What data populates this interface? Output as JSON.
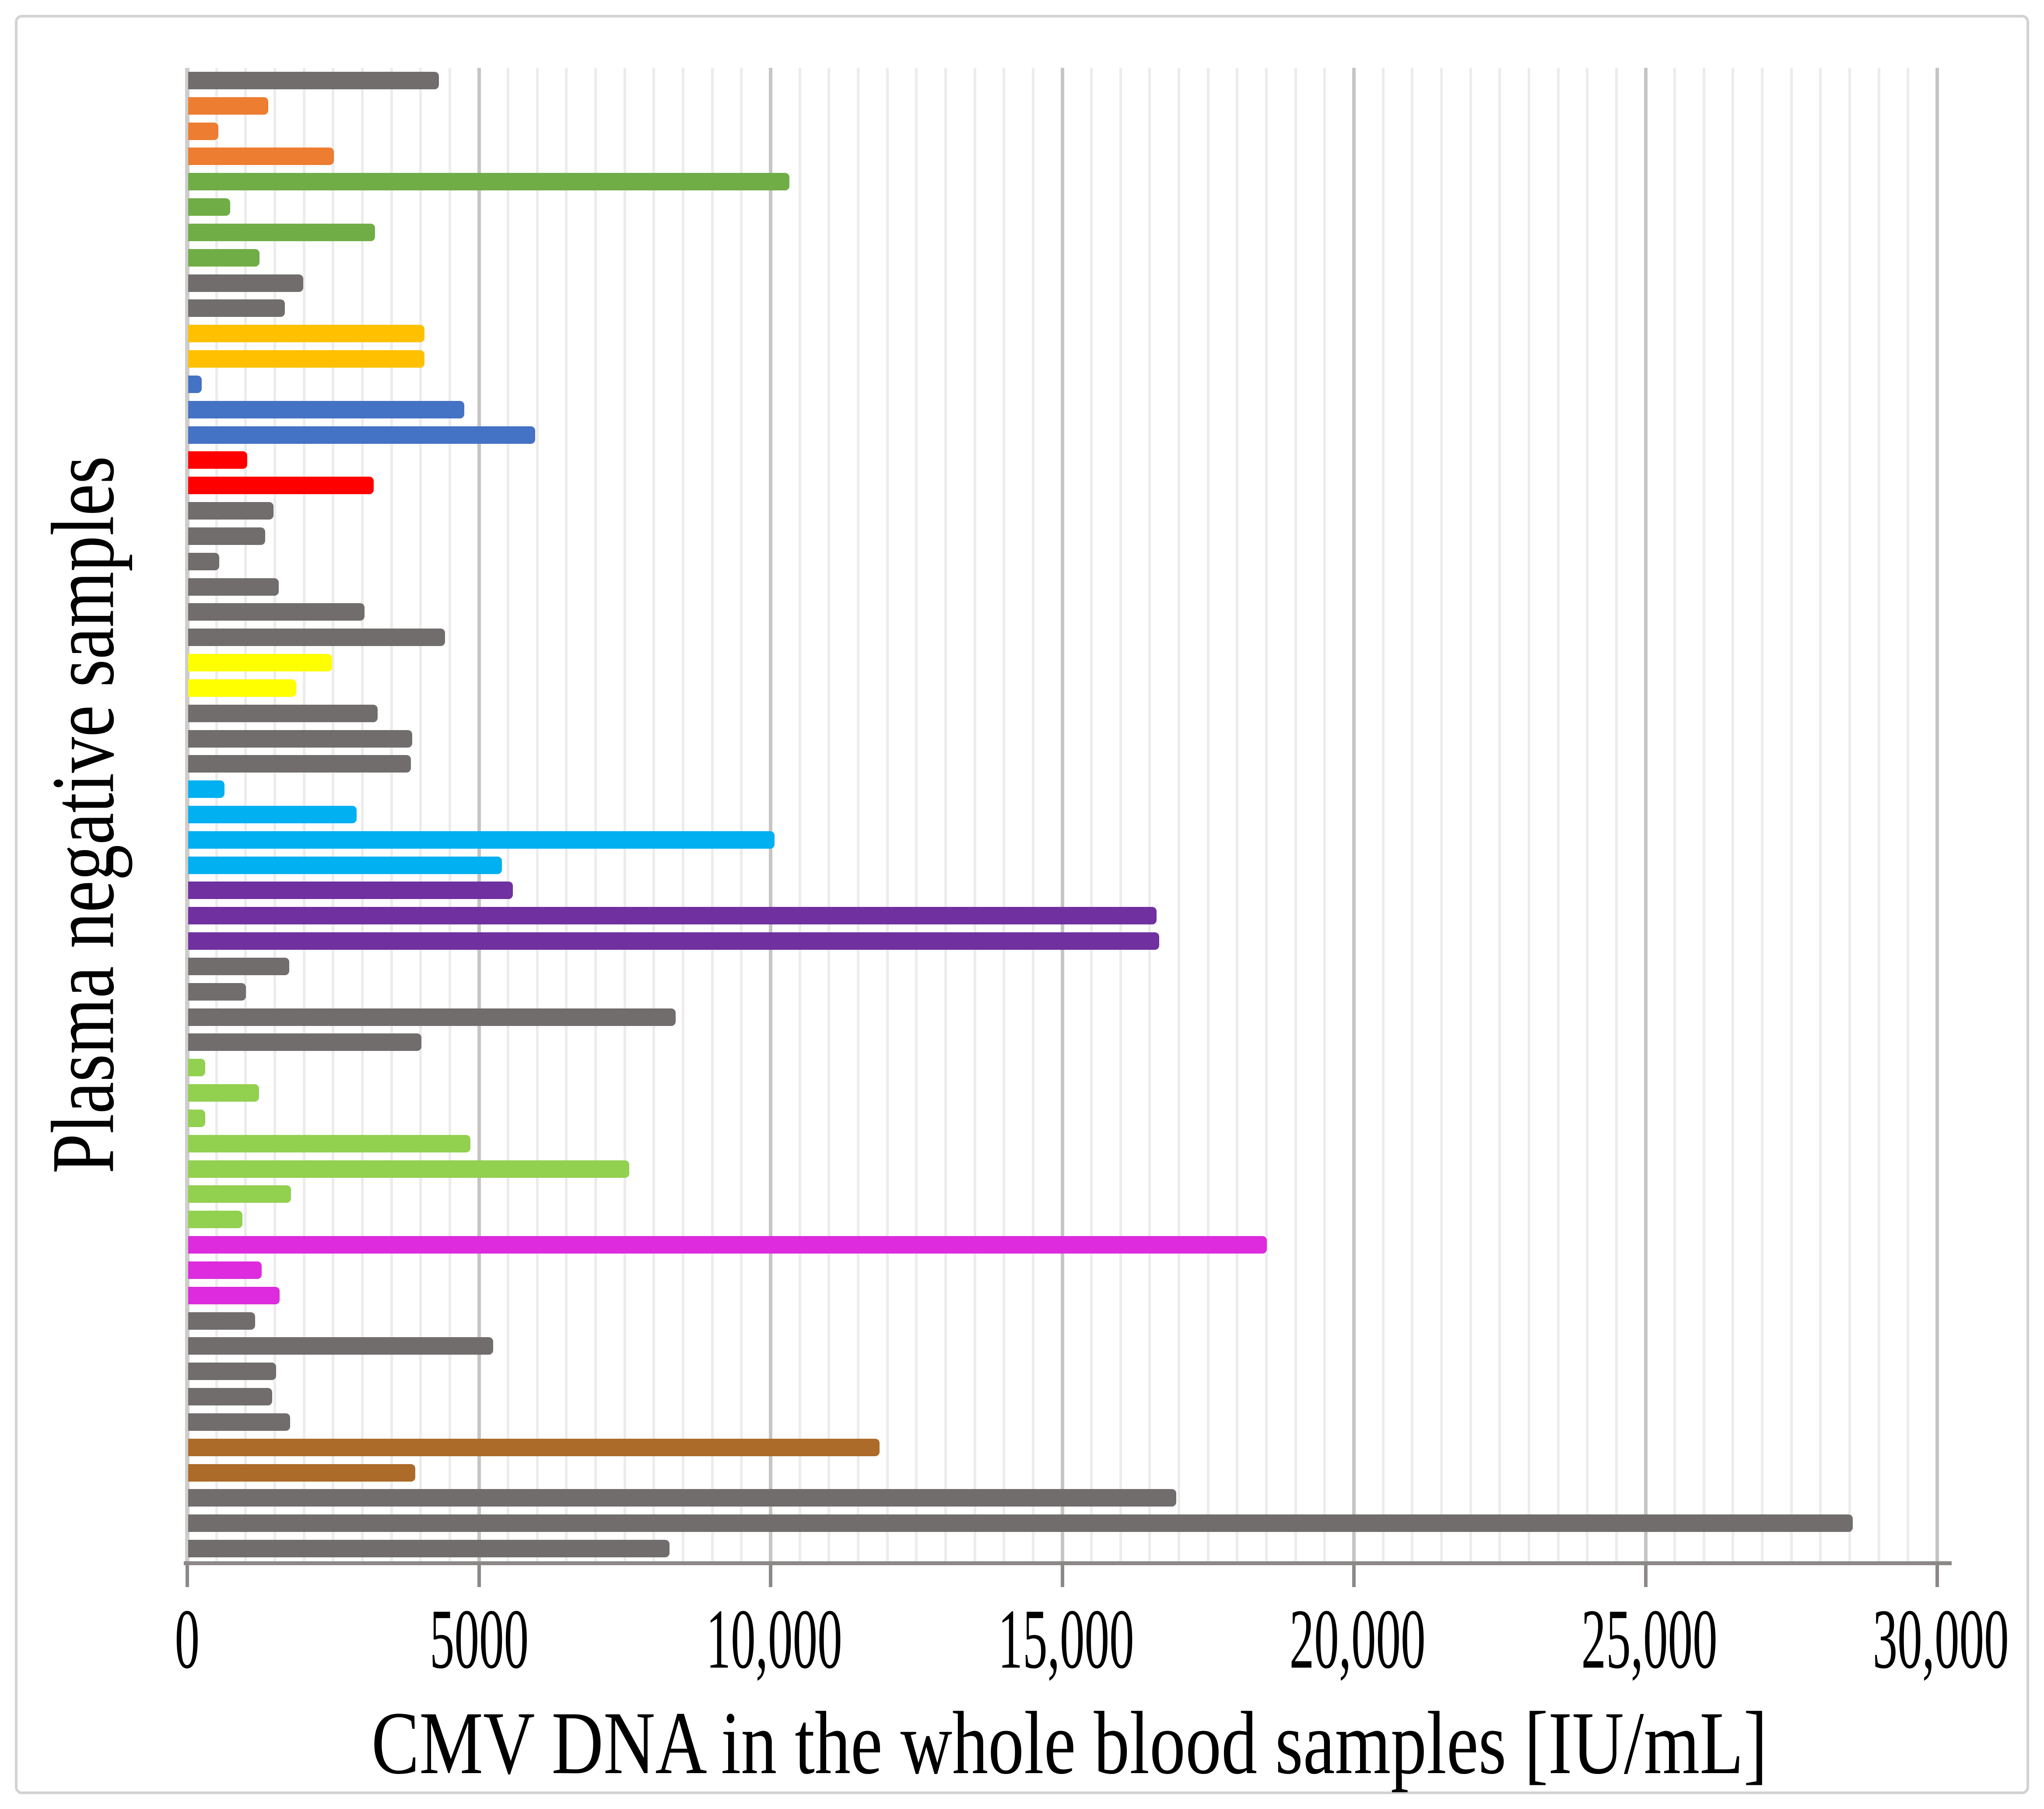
{
  "figure": {
    "background": "#FFFFFF",
    "frame_border_color": "#D4D1D1"
  },
  "style": {
    "minor_grid_color": "#EDEBEB",
    "major_grid_color": "#C7C4C4",
    "y_axis_line_color": "#CFCCCC",
    "x_axis_line_color": "#8C8888",
    "tick_color": "#8C8888",
    "label_color": "#000000"
  },
  "chart_data": {
    "type": "bar",
    "orientation": "horizontal",
    "title": "",
    "xlabel": "CMV DNA in the whole blood samples [IU/mL]",
    "ylabel": "Plasma negative samples",
    "xlim": [
      0,
      30000
    ],
    "x_major_tick_values": [
      0,
      5000,
      10000,
      15000,
      20000,
      25000,
      30000
    ],
    "x_tick_labels": [
      "0",
      "5000",
      "10,000",
      "15,000",
      "20,000",
      "25,000",
      "30,000"
    ],
    "x_minor_step": 500,
    "grid": {
      "vertical_minor": true,
      "vertical_major": true,
      "horizontal": false
    },
    "legend_position": "none",
    "colors": {
      "gray": "#716D6C",
      "orange": "#ED7D31",
      "green": "#70AD47",
      "gold": "#FFC000",
      "blue": "#4472C4",
      "red": "#FF0000",
      "yellow": "#FFFF00",
      "cyan": "#00B0F0",
      "purple": "#7030A0",
      "lightgreen": "#92D050",
      "magenta": "#DD2BDD",
      "brown": "#AC6B29"
    },
    "bars": [
      {
        "value": 4300,
        "color": "gray"
      },
      {
        "value": 1370,
        "color": "orange"
      },
      {
        "value": 520,
        "color": "orange"
      },
      {
        "value": 2500,
        "color": "orange"
      },
      {
        "value": 10310,
        "color": "green"
      },
      {
        "value": 720,
        "color": "green"
      },
      {
        "value": 3200,
        "color": "green"
      },
      {
        "value": 1220,
        "color": "green"
      },
      {
        "value": 1970,
        "color": "gray"
      },
      {
        "value": 1660,
        "color": "gray"
      },
      {
        "value": 4050,
        "color": "gold"
      },
      {
        "value": 4050,
        "color": "gold"
      },
      {
        "value": 230,
        "color": "blue"
      },
      {
        "value": 4730,
        "color": "blue"
      },
      {
        "value": 5950,
        "color": "blue"
      },
      {
        "value": 1010,
        "color": "red"
      },
      {
        "value": 3180,
        "color": "red"
      },
      {
        "value": 1460,
        "color": "gray"
      },
      {
        "value": 1320,
        "color": "gray"
      },
      {
        "value": 530,
        "color": "gray"
      },
      {
        "value": 1550,
        "color": "gray"
      },
      {
        "value": 3020,
        "color": "gray"
      },
      {
        "value": 4400,
        "color": "gray"
      },
      {
        "value": 2470,
        "color": "yellow"
      },
      {
        "value": 1850,
        "color": "yellow"
      },
      {
        "value": 3250,
        "color": "gray"
      },
      {
        "value": 3840,
        "color": "gray"
      },
      {
        "value": 3820,
        "color": "gray"
      },
      {
        "value": 620,
        "color": "cyan"
      },
      {
        "value": 2890,
        "color": "cyan"
      },
      {
        "value": 10050,
        "color": "cyan"
      },
      {
        "value": 5380,
        "color": "cyan"
      },
      {
        "value": 5570,
        "color": "purple"
      },
      {
        "value": 16600,
        "color": "purple"
      },
      {
        "value": 16650,
        "color": "purple"
      },
      {
        "value": 1730,
        "color": "gray"
      },
      {
        "value": 990,
        "color": "gray"
      },
      {
        "value": 8360,
        "color": "gray"
      },
      {
        "value": 4000,
        "color": "gray"
      },
      {
        "value": 290,
        "color": "lightgreen"
      },
      {
        "value": 1215,
        "color": "lightgreen"
      },
      {
        "value": 290,
        "color": "lightgreen"
      },
      {
        "value": 4840,
        "color": "lightgreen"
      },
      {
        "value": 7560,
        "color": "lightgreen"
      },
      {
        "value": 1760,
        "color": "lightgreen"
      },
      {
        "value": 930,
        "color": "lightgreen"
      },
      {
        "value": 18490,
        "color": "magenta"
      },
      {
        "value": 1260,
        "color": "magenta"
      },
      {
        "value": 1565,
        "color": "magenta"
      },
      {
        "value": 1150,
        "color": "gray"
      },
      {
        "value": 5230,
        "color": "gray"
      },
      {
        "value": 1510,
        "color": "gray"
      },
      {
        "value": 1440,
        "color": "gray"
      },
      {
        "value": 1750,
        "color": "gray"
      },
      {
        "value": 11850,
        "color": "brown"
      },
      {
        "value": 3890,
        "color": "brown"
      },
      {
        "value": 16940,
        "color": "gray"
      },
      {
        "value": 28540,
        "color": "gray"
      },
      {
        "value": 8250,
        "color": "gray"
      }
    ]
  }
}
